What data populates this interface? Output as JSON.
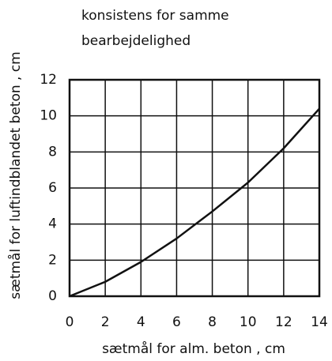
{
  "chart_data": {
    "type": "line",
    "title": [
      "konsistens for samme",
      "bearbejdelighed"
    ],
    "x_label": "sætmål  for  alm. beton , cm",
    "y_label": "sætmål  for  luftindblandet beton , cm",
    "x": [
      0,
      2,
      4,
      6,
      8,
      10,
      12,
      14
    ],
    "series": [
      {
        "color": "#111111",
        "values": [
          0,
          0.8,
          1.9,
          3.2,
          4.7,
          6.3,
          8.2,
          10.4
        ]
      }
    ],
    "xlim": [
      0,
      14
    ],
    "xticks": [
      0,
      2,
      4,
      6,
      8,
      10,
      12,
      14
    ],
    "ylim": [
      0,
      12
    ],
    "yticks": [
      0,
      2,
      4,
      6,
      8,
      10,
      12
    ],
    "grid": true
  }
}
